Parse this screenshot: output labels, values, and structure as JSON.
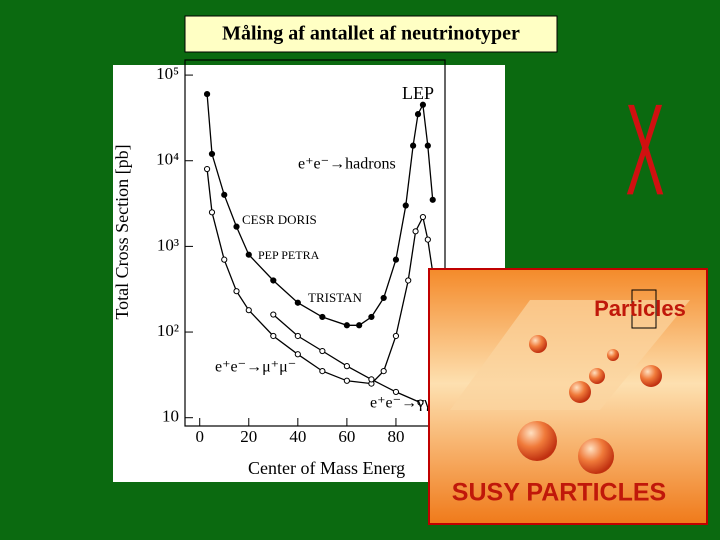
{
  "slide_title": "Måling af antallet af neutrinotyper",
  "chart_data": {
    "type": "line",
    "ylabel": "Total Cross Section [pb]",
    "xlabel": "Center of Mass Energ",
    "log_y": true,
    "xlim": [
      -6,
      100
    ],
    "ylim": [
      8,
      150000
    ],
    "xticks": [
      0,
      20,
      40,
      60,
      80
    ],
    "yticks": [
      10,
      {
        "value": 100,
        "label": "10²"
      },
      {
        "value": 1000,
        "label": "10³"
      },
      {
        "value": 10000,
        "label": "10⁴"
      },
      {
        "value": 100000,
        "label": "10⁵"
      }
    ],
    "annotations": [
      "LEP",
      "CESR DORIS",
      "PEP PETRA",
      "TRISTAN"
    ],
    "series": [
      {
        "name": "e⁺e⁻→hadrons",
        "color": "#000000",
        "x": [
          3,
          5,
          10,
          15,
          20,
          30,
          40,
          50,
          60,
          65,
          70,
          75,
          80,
          84,
          87,
          89,
          91,
          93,
          95
        ],
        "values": [
          60000,
          12000,
          4000,
          1700,
          800,
          400,
          220,
          150,
          120,
          120,
          150,
          250,
          700,
          3000,
          15000,
          35000,
          45000,
          15000,
          3500
        ]
      },
      {
        "name": "e⁺e⁻→μ⁺μ⁻",
        "color": "#000000",
        "x": [
          3,
          5,
          10,
          15,
          20,
          30,
          40,
          50,
          60,
          70,
          75,
          80,
          85,
          88,
          91,
          93,
          95
        ],
        "values": [
          8000,
          2500,
          700,
          300,
          180,
          90,
          55,
          35,
          27,
          25,
          35,
          90,
          400,
          1500,
          2200,
          1200,
          500
        ]
      },
      {
        "name": "e⁺e⁻→γγ",
        "color": "#000000",
        "x": [
          30,
          40,
          50,
          60,
          70,
          80,
          90
        ],
        "values": [
          160,
          90,
          60,
          40,
          28,
          20,
          15
        ]
      }
    ]
  },
  "cross_mark": "X",
  "overlay": {
    "title": "Particles",
    "caption": "SUSY PARTICLES"
  }
}
